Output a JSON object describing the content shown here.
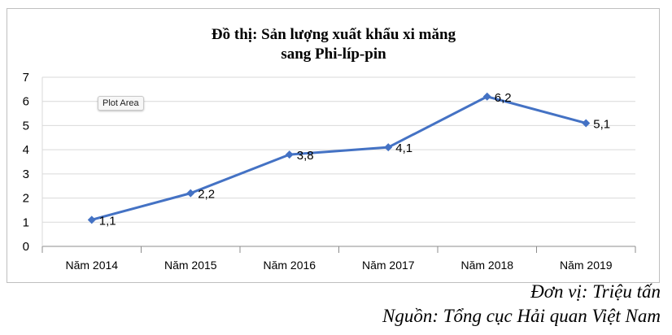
{
  "chart_data": {
    "type": "line",
    "title_lines": [
      "Đồ thị: Sản lượng xuất khẩu xi măng",
      "sang Phi-líp-pin"
    ],
    "categories": [
      "Năm 2014",
      "Năm 2015",
      "Năm 2016",
      "Năm 2017",
      "Năm 2018",
      "Năm 2019"
    ],
    "values": [
      1.1,
      2.2,
      3.8,
      4.1,
      6.2,
      5.1
    ],
    "data_labels": [
      "1,1",
      "2,2",
      "3,8",
      "4,1",
      "6,2",
      "5,1"
    ],
    "ylim": [
      0,
      7
    ],
    "yticks": [
      "0",
      "1",
      "2",
      "3",
      "4",
      "5",
      "6",
      "7"
    ],
    "grid": true,
    "legend": "none",
    "series_color": "#4472c4",
    "marker": "diamond"
  },
  "tooltip": "Plot Area",
  "footnotes": {
    "unit": "Đơn vị: Triệu tấn",
    "source": "Nguồn: Tổng cục Hải quan Việt Nam"
  }
}
